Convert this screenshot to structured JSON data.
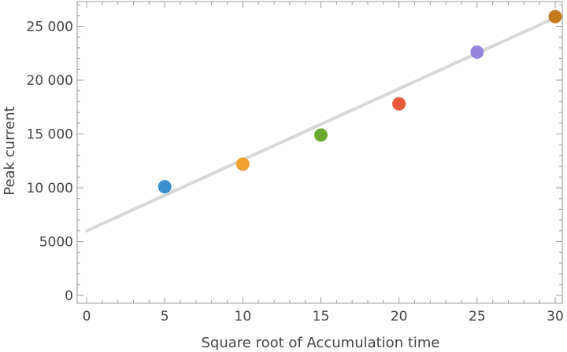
{
  "chart_data": {
    "type": "scatter",
    "xlabel": "Square root of Accumulation time",
    "ylabel": "Peak current",
    "xlim": [
      0,
      30
    ],
    "ylim": [
      0,
      27000
    ],
    "x_ticks": [
      0,
      5,
      10,
      15,
      20,
      25,
      30
    ],
    "x_tick_labels": [
      "0",
      "5",
      "10",
      "15",
      "20",
      "25",
      "30"
    ],
    "y_ticks": [
      0,
      5000,
      10000,
      15000,
      20000,
      25000
    ],
    "y_tick_labels": [
      "0",
      "5000",
      "10 000",
      "15 000",
      "20 000",
      "25 000"
    ],
    "grid": false,
    "points": [
      {
        "x": 5,
        "y": 10100,
        "color": "#3a8fcf"
      },
      {
        "x": 10,
        "y": 12200,
        "color": "#f0a030"
      },
      {
        "x": 15,
        "y": 14900,
        "color": "#6aab34"
      },
      {
        "x": 20,
        "y": 17800,
        "color": "#e8573a"
      },
      {
        "x": 25,
        "y": 22600,
        "color": "#9784de"
      },
      {
        "x": 30,
        "y": 25900,
        "color": "#c47a1c"
      }
    ],
    "fit_line": {
      "x": [
        0,
        30
      ],
      "y": [
        6000,
        25800
      ],
      "color": "#d6d6d6"
    }
  }
}
